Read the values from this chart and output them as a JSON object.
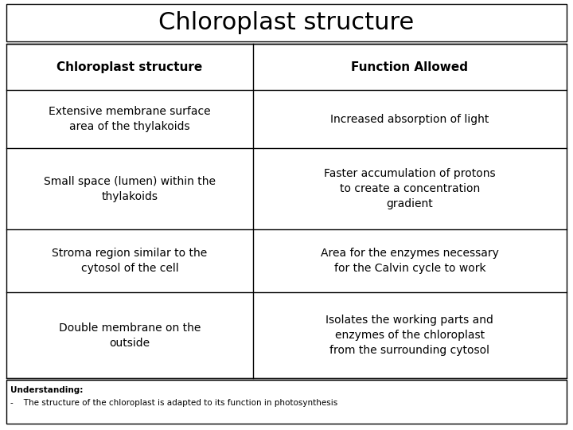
{
  "title": "Chloroplast structure",
  "title_fontsize": 22,
  "headers": [
    "Chloroplast structure",
    "Function Allowed"
  ],
  "header_fontsize": 11,
  "rows": [
    [
      "Extensive membrane surface\narea of the thylakoids",
      "Increased absorption of light"
    ],
    [
      "Small space (lumen) within the\nthylakoids",
      "Faster accumulation of protons\nto create a concentration\ngradient"
    ],
    [
      "Stroma region similar to the\ncytosol of the cell",
      "Area for the enzymes necessary\nfor the Calvin cycle to work"
    ],
    [
      "Double membrane on the\noutside",
      "Isolates the working parts and\nenzymes of the chloroplast\nfrom the surrounding cytosol"
    ]
  ],
  "cell_fontsize": 10,
  "understanding_bold": "Understanding:",
  "understanding_bullet": "-    The structure of the chloroplast is adapted to its function in photosynthesis",
  "understanding_fontsize": 7.5,
  "bg_color": "#ffffff",
  "border_color": "#000000",
  "col_split": 0.44
}
